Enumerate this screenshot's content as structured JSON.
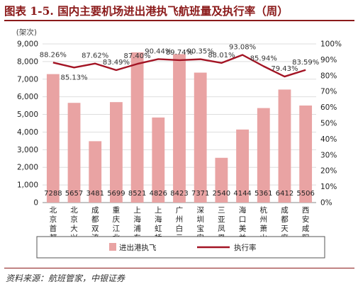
{
  "header": {
    "title": "图表 1-5. 国内主要机场进出港执飞航班量及执行率（周）",
    "source": "资料来源：航班管家，中银证券"
  },
  "chart_data": {
    "type": "bar+line",
    "categories": [
      "北京首都",
      "北京大兴",
      "成都双流",
      "重庆江北",
      "上海浦东",
      "上海虹桥",
      "广州白云",
      "深圳宝安",
      "三亚凤凰",
      "海口美兰",
      "杭州萧山",
      "成都天府",
      "西安咸阳"
    ],
    "y_left_label": "(架次)",
    "ylim_left": [
      0,
      9000
    ],
    "yticks_left": [
      "0",
      "1,000",
      "2,000",
      "3,000",
      "4,000",
      "5,000",
      "6,000",
      "7,000",
      "8,000",
      "9,000"
    ],
    "ylim_right": [
      0,
      100
    ],
    "yticks_right": [
      "0%",
      "10%",
      "20%",
      "30%",
      "40%",
      "50%",
      "60%",
      "70%",
      "80%",
      "90%",
      "100%"
    ],
    "series": [
      {
        "name": "进出港执飞",
        "type": "bar",
        "axis": "left",
        "color": "#e9a3a3",
        "values": [
          7288,
          5657,
          3481,
          5699,
          8521,
          4826,
          8423,
          7371,
          2540,
          4144,
          5361,
          6412,
          5506
        ],
        "labels": [
          "7288",
          "5657",
          "3481",
          "5699",
          "8521",
          "4826",
          "8423",
          "7371",
          "2540",
          "4144",
          "5361",
          "6412",
          "5506"
        ]
      },
      {
        "name": "执行率",
        "type": "line",
        "axis": "right",
        "color": "#a31424",
        "values": [
          88.26,
          85.13,
          87.62,
          83.49,
          87.4,
          90.44,
          89.74,
          90.35,
          88.01,
          93.08,
          85.94,
          79.43,
          83.59
        ],
        "labels": [
          "88.26%",
          "85.13%",
          "87.62%",
          "83.49%",
          "87.40%",
          "90.44%",
          "89.74%",
          "90.35%",
          "88.01%",
          "93.08%",
          "85.94%",
          "79.43%",
          "83.59%"
        ]
      }
    ],
    "legend_position": "bottom"
  }
}
